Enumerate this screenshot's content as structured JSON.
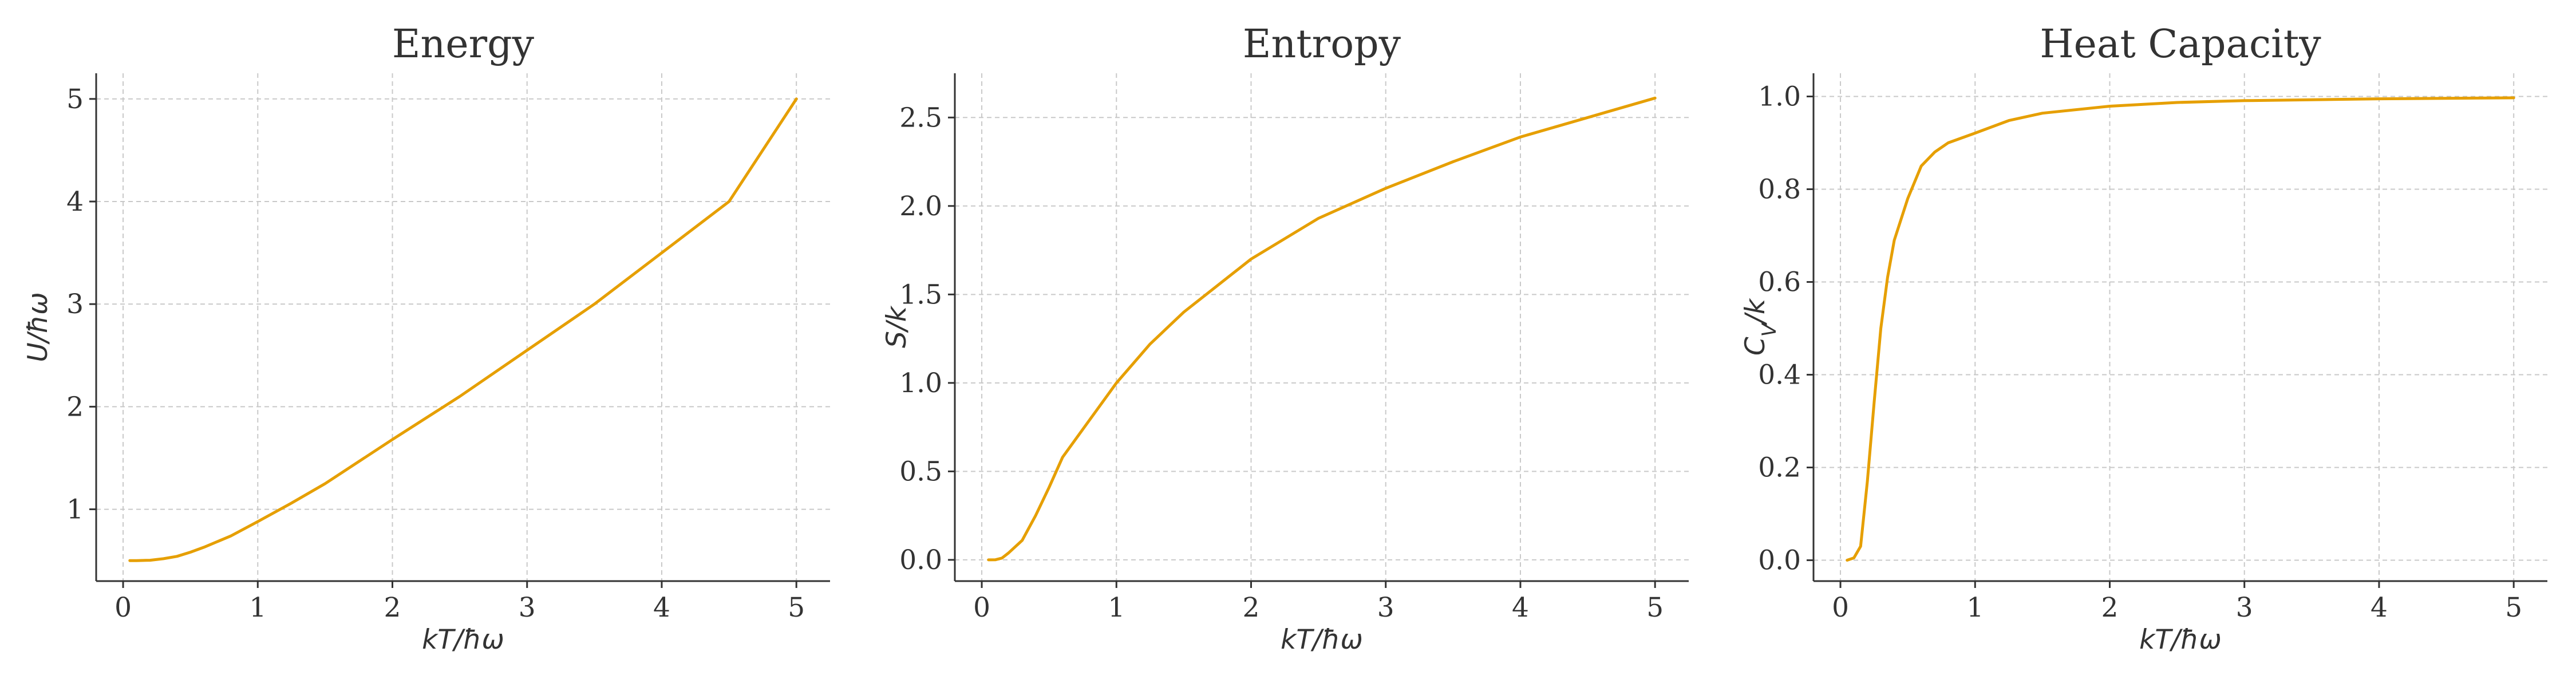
{
  "colors": {
    "series": "#e69f00",
    "axis": "#333333",
    "grid": "#c9c9c9"
  },
  "chart_data": [
    {
      "type": "line",
      "title": "Energy",
      "xlabel": "kT/ħω",
      "ylabel": "U/ħω",
      "xlim": [
        -0.2,
        5.25
      ],
      "ylim": [
        0.3,
        5.25
      ],
      "xticks": [
        0,
        1,
        2,
        3,
        4,
        5
      ],
      "yticks": [
        1,
        2,
        3,
        4,
        5
      ],
      "ytick_labels": [
        "1",
        "2",
        "3",
        "4",
        "5"
      ],
      "grid": true,
      "series": [
        {
          "x": [
            0.05,
            0.1,
            0.2,
            0.3,
            0.4,
            0.5,
            0.6,
            0.8,
            1.0,
            1.25,
            1.5,
            2.0,
            2.5,
            3.0,
            3.5,
            4.0,
            4.5,
            5.0
          ],
          "y": [
            0.5,
            0.5,
            0.503,
            0.518,
            0.541,
            0.582,
            0.63,
            0.74,
            0.88,
            1.06,
            1.25,
            1.68,
            2.1,
            2.55,
            3.0,
            3.5,
            4.0,
            5.0
          ]
        }
      ]
    },
    {
      "type": "line",
      "title": "Entropy",
      "xlabel": "kT/ħω",
      "ylabel": "S/k",
      "xlim": [
        -0.2,
        5.25
      ],
      "ylim": [
        -0.12,
        2.75
      ],
      "xticks": [
        0,
        1,
        2,
        3,
        4,
        5
      ],
      "yticks": [
        0.0,
        0.5,
        1.0,
        1.5,
        2.0,
        2.5
      ],
      "ytick_labels": [
        "0.0",
        "0.5",
        "1.0",
        "1.5",
        "2.0",
        "2.5"
      ],
      "grid": true,
      "series": [
        {
          "x": [
            0.05,
            0.1,
            0.15,
            0.2,
            0.3,
            0.4,
            0.5,
            0.6,
            0.8,
            1.0,
            1.25,
            1.5,
            2.0,
            2.5,
            3.0,
            3.5,
            4.0,
            4.5,
            5.0
          ],
          "y": [
            0.0,
            0.0005,
            0.01,
            0.04,
            0.11,
            0.25,
            0.41,
            0.58,
            0.79,
            1.0,
            1.22,
            1.4,
            1.7,
            1.93,
            2.1,
            2.25,
            2.39,
            2.5,
            2.61
          ]
        }
      ]
    },
    {
      "type": "line",
      "title": "Heat Capacity",
      "xlabel": "kT/ħω",
      "ylabel": "C_V/k",
      "xlim": [
        -0.2,
        5.25
      ],
      "ylim": [
        -0.045,
        1.05
      ],
      "xticks": [
        0,
        1,
        2,
        3,
        4,
        5
      ],
      "yticks": [
        0.0,
        0.2,
        0.4,
        0.6,
        0.8,
        1.0
      ],
      "ytick_labels": [
        "0.0",
        "0.2",
        "0.4",
        "0.6",
        "0.8",
        "1.0"
      ],
      "grid": true,
      "series": [
        {
          "x": [
            0.05,
            0.1,
            0.15,
            0.2,
            0.25,
            0.3,
            0.35,
            0.4,
            0.5,
            0.6,
            0.7,
            0.8,
            1.0,
            1.25,
            1.5,
            2.0,
            2.5,
            3.0,
            4.0,
            5.0
          ],
          "y": [
            0.0,
            0.005,
            0.03,
            0.17,
            0.34,
            0.5,
            0.61,
            0.69,
            0.78,
            0.85,
            0.88,
            0.9,
            0.921,
            0.948,
            0.964,
            0.979,
            0.987,
            0.991,
            0.995,
            0.997
          ]
        }
      ]
    }
  ]
}
